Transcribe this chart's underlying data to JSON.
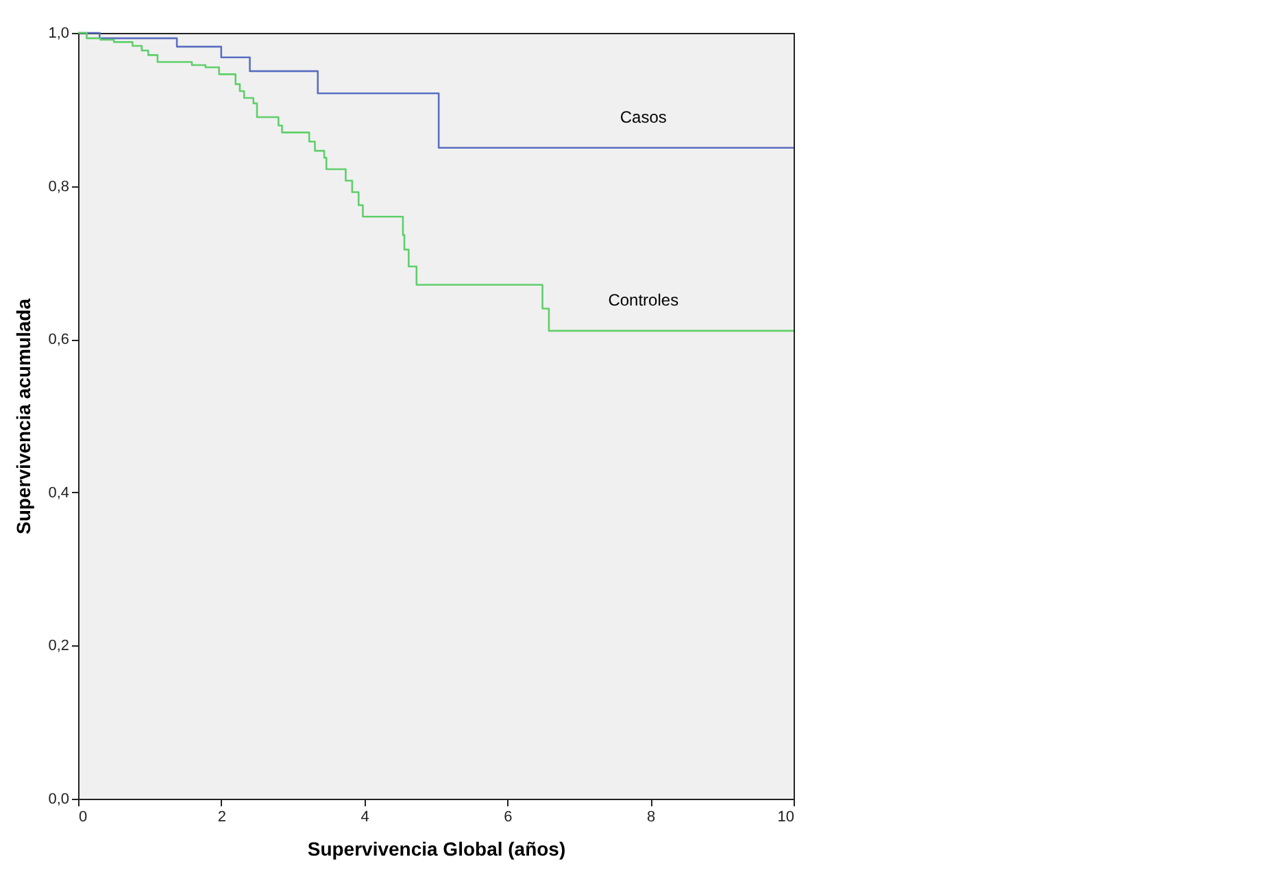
{
  "chart_data": {
    "type": "step",
    "xlabel": "Supervivencia Global (años)",
    "ylabel": "Supervivencia acumulada",
    "xlim": [
      0,
      10
    ],
    "xticks": [
      0,
      2,
      4,
      6,
      8,
      10
    ],
    "ylim": [
      0,
      1
    ],
    "yticks": [
      {
        "value": 0,
        "label": "0,0"
      },
      {
        "value": 0.2,
        "label": "0,2"
      },
      {
        "value": 0.4,
        "label": "0,4"
      },
      {
        "value": 0.6,
        "label": "0,6"
      },
      {
        "value": 0.8,
        "label": "0,8"
      },
      {
        "value": 1,
        "label": "1,0"
      }
    ],
    "grid": false,
    "legend": false,
    "series": [
      {
        "name": "Casos",
        "color": "#5a6fc0",
        "x": [
          0,
          0.3,
          1.38,
          2.0,
          2.4,
          3.35,
          5.04,
          10
        ],
        "values": [
          1.0,
          0.993,
          0.982,
          0.968,
          0.95,
          0.921,
          0.85,
          0.85
        ]
      },
      {
        "name": "Controles",
        "color": "#5fcf6a",
        "x": [
          0,
          0.12,
          0.31,
          0.5,
          0.76,
          0.89,
          0.98,
          1.11,
          1.59,
          1.78,
          1.97,
          2.2,
          2.26,
          2.32,
          2.45,
          2.5,
          2.8,
          2.85,
          3.23,
          3.31,
          3.44,
          3.47,
          3.74,
          3.83,
          3.92,
          3.98,
          4.54,
          4.56,
          4.62,
          4.73,
          6.49,
          6.58,
          10
        ],
        "values": [
          1.0,
          0.993,
          0.991,
          0.988,
          0.983,
          0.977,
          0.971,
          0.962,
          0.958,
          0.955,
          0.946,
          0.933,
          0.924,
          0.915,
          0.908,
          0.89,
          0.879,
          0.87,
          0.858,
          0.846,
          0.837,
          0.822,
          0.807,
          0.792,
          0.775,
          0.76,
          0.736,
          0.717,
          0.695,
          0.671,
          0.64,
          0.611,
          0.611
        ]
      }
    ]
  }
}
